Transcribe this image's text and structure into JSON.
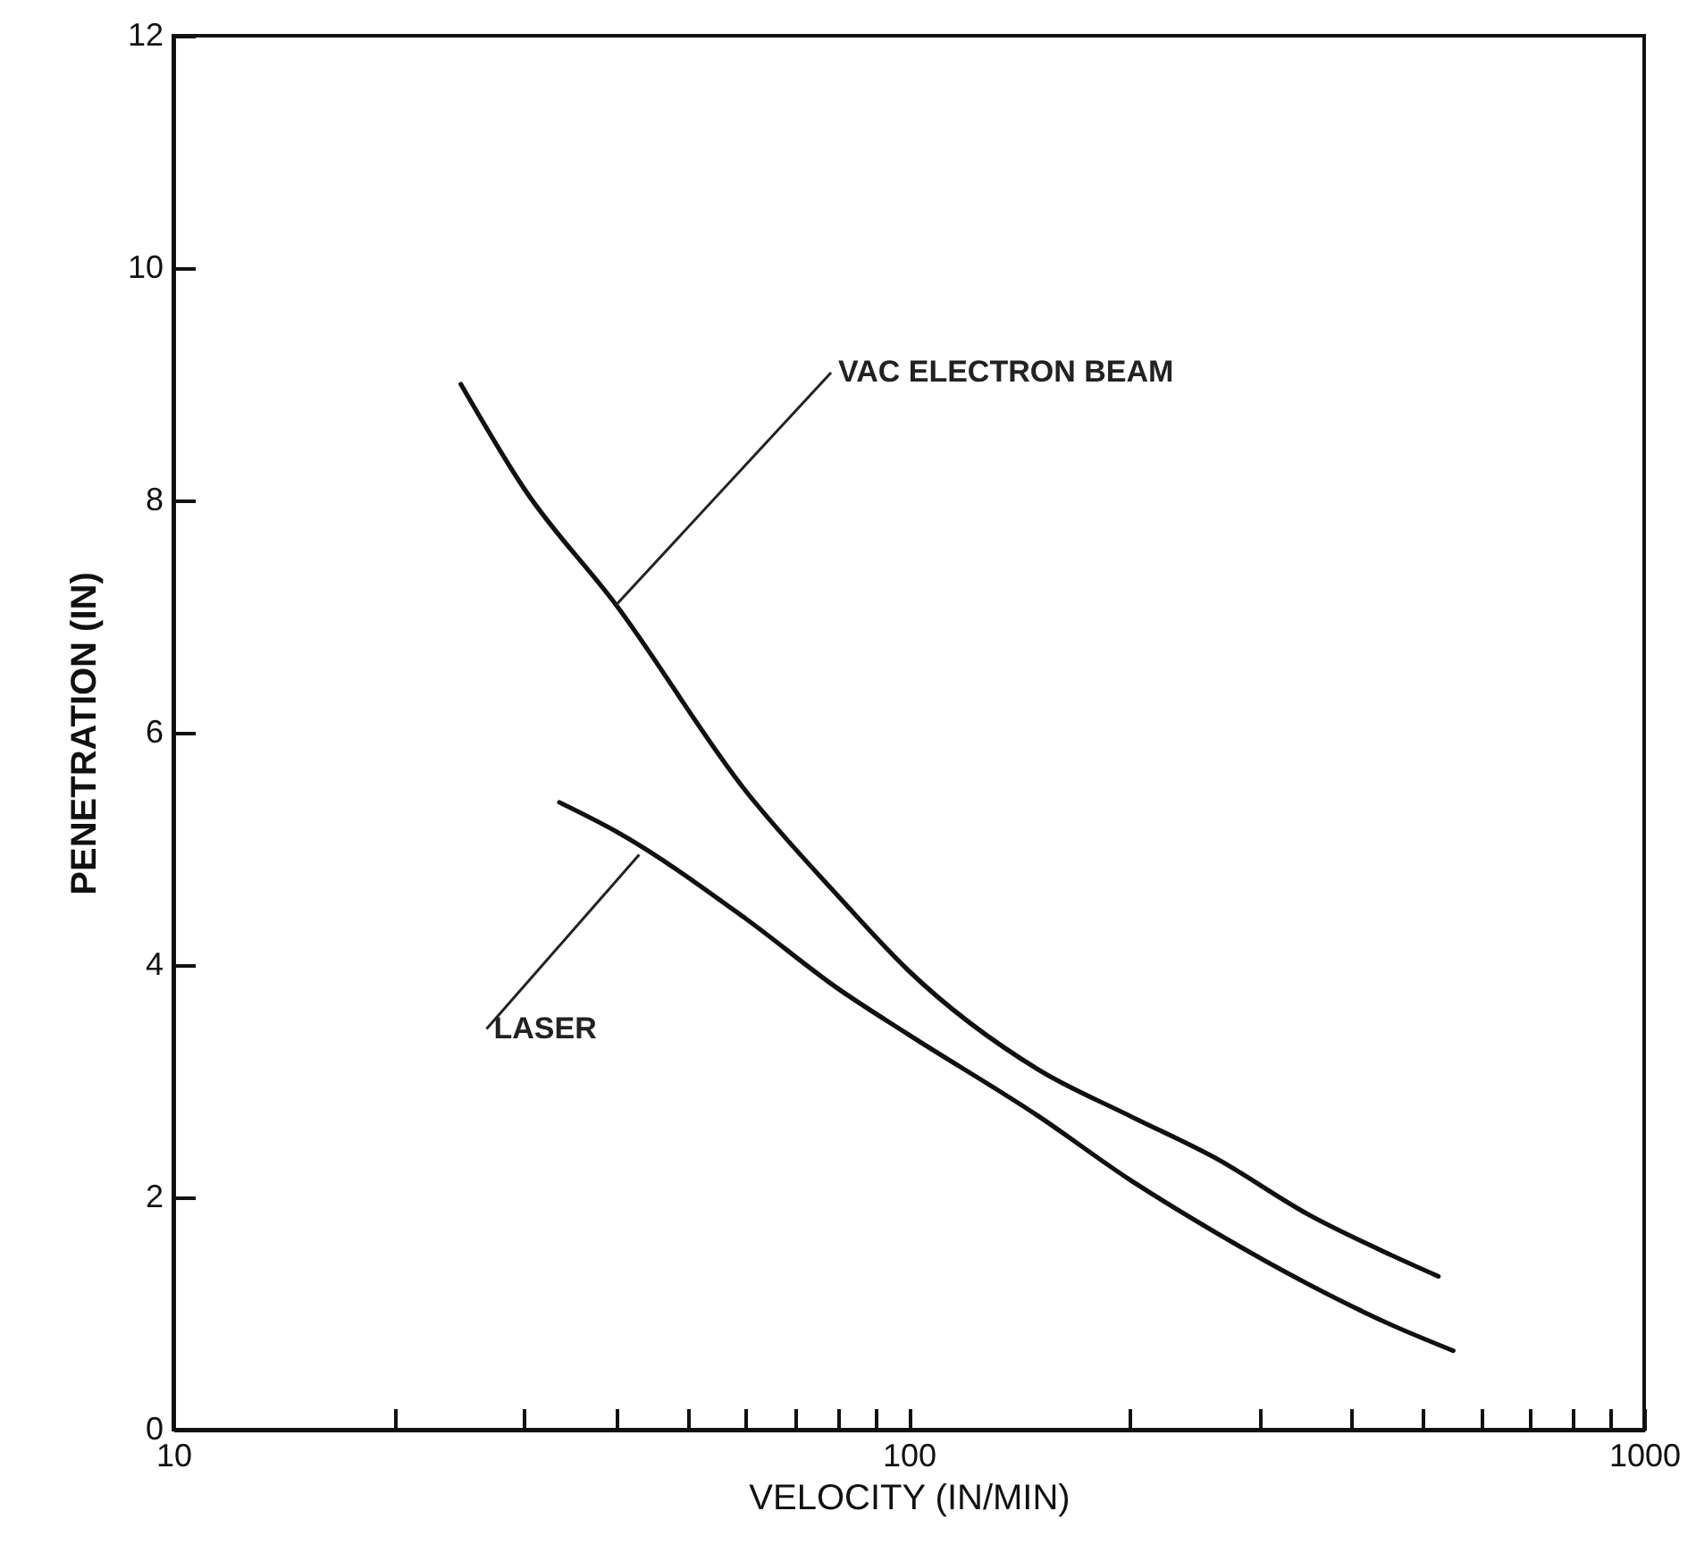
{
  "chart_data": {
    "type": "line",
    "xlabel": "VELOCITY (IN/MIN)",
    "ylabel": "PENETRATION (IN)",
    "log": "x",
    "xlim": [
      10,
      1000
    ],
    "ylim": [
      0,
      12
    ],
    "xticks": [
      10,
      {
        "value": 20,
        "label": null
      },
      {
        "value": 30,
        "label": null
      },
      {
        "value": 40,
        "label": null
      },
      {
        "value": 50,
        "label": null
      },
      {
        "value": 60,
        "label": null
      },
      {
        "value": 70,
        "label": null
      },
      {
        "value": 80,
        "label": null
      },
      {
        "value": 90,
        "label": null
      },
      100,
      {
        "value": 200,
        "label": null
      },
      {
        "value": 300,
        "label": null
      },
      {
        "value": 400,
        "label": null
      },
      {
        "value": 500,
        "label": null
      },
      {
        "value": 600,
        "label": null
      },
      {
        "value": 700,
        "label": null
      },
      {
        "value": 800,
        "label": null
      },
      {
        "value": 900,
        "label": null
      },
      1000
    ],
    "yticks": [
      0,
      2,
      4,
      6,
      8,
      10,
      12
    ],
    "grid": false,
    "legend": false,
    "marker": "none",
    "line_style": "solid",
    "series": [
      {
        "color": "#111111",
        "x": [
          24.6,
          30,
          40,
          60,
          80,
          100,
          150,
          200,
          261,
          350,
          454,
          525
        ],
        "values": [
          9.0,
          8.1,
          7.1,
          5.5,
          4.6,
          3.95,
          3.1,
          2.7,
          2.34,
          1.85,
          1.5,
          1.32
        ]
      },
      {
        "color": "#111111",
        "x": [
          33.5,
          40,
          60,
          80,
          100,
          150,
          200,
          261,
          350,
          454,
          550
        ],
        "values": [
          5.4,
          5.15,
          4.4,
          3.8,
          3.4,
          2.7,
          2.15,
          1.7,
          1.25,
          0.9,
          0.68
        ]
      }
    ],
    "annotations": [
      {
        "text": "VAC ELECTRON BEAM",
        "x": 40,
        "y": 7.1
      },
      {
        "text": "LASER",
        "x": 43,
        "y": 4.95
      }
    ]
  }
}
